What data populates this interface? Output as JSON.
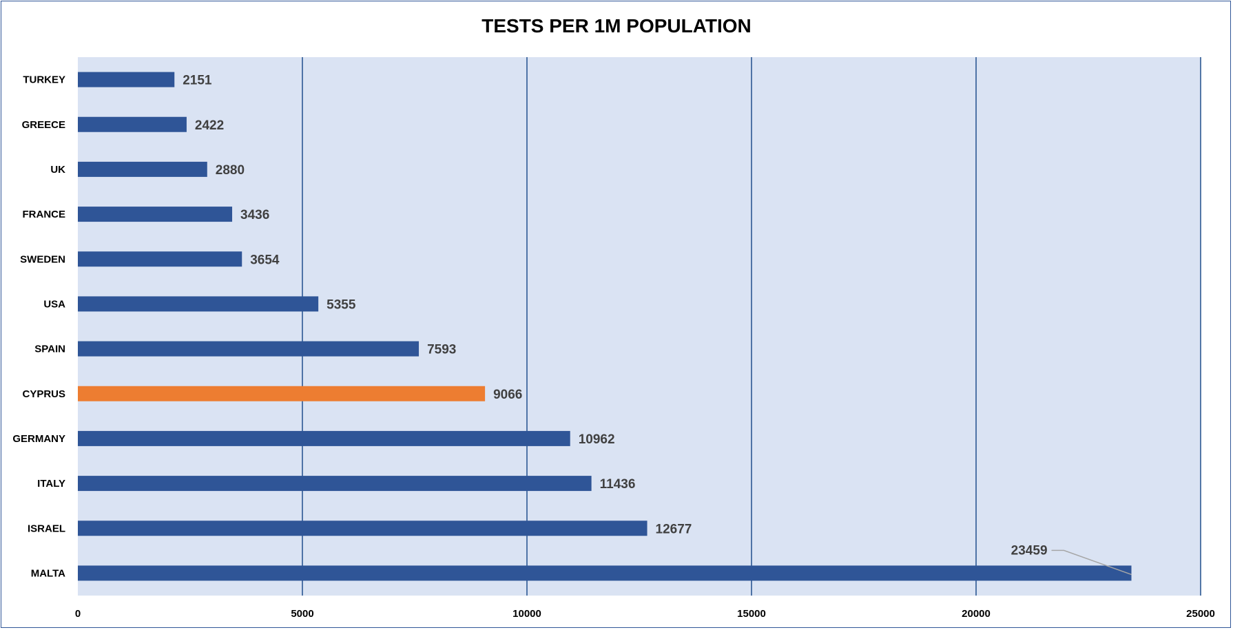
{
  "chart_data": {
    "type": "bar",
    "orientation": "horizontal",
    "title": "TESTS PER 1M POPULATION",
    "xlabel": "",
    "ylabel": "",
    "categories": [
      "TURKEY",
      "GREECE",
      "UK",
      "FRANCE",
      "SWEDEN",
      "USA",
      "SPAIN",
      "CYPRUS",
      "GERMANY",
      "ITALY",
      "ISRAEL",
      "MALTA"
    ],
    "values": [
      2151,
      2422,
      2880,
      3436,
      3654,
      5355,
      7593,
      9066,
      10962,
      11436,
      12677,
      23459
    ],
    "data_labels": [
      "2151",
      "2422",
      "2880",
      "3436",
      "3654",
      "5355",
      "7593",
      "9066",
      "10962",
      "11436",
      "12677",
      "23459"
    ],
    "xlim": [
      0,
      25000
    ],
    "x_ticks": [
      "0",
      "5000",
      "10000",
      "15000",
      "20000",
      "25000"
    ],
    "x_tick_values": [
      0,
      5000,
      10000,
      15000,
      20000,
      25000
    ],
    "grid": "vertical",
    "legend": "none",
    "highlight_category": "CYPRUS",
    "colors": {
      "bar": "#2F5597",
      "highlight": "#ED7D31",
      "plot_background": "#DAE3F3",
      "gridline": "#1F4E8C",
      "frame": "#2F5597",
      "leader_line": "#A6A6A6"
    }
  }
}
